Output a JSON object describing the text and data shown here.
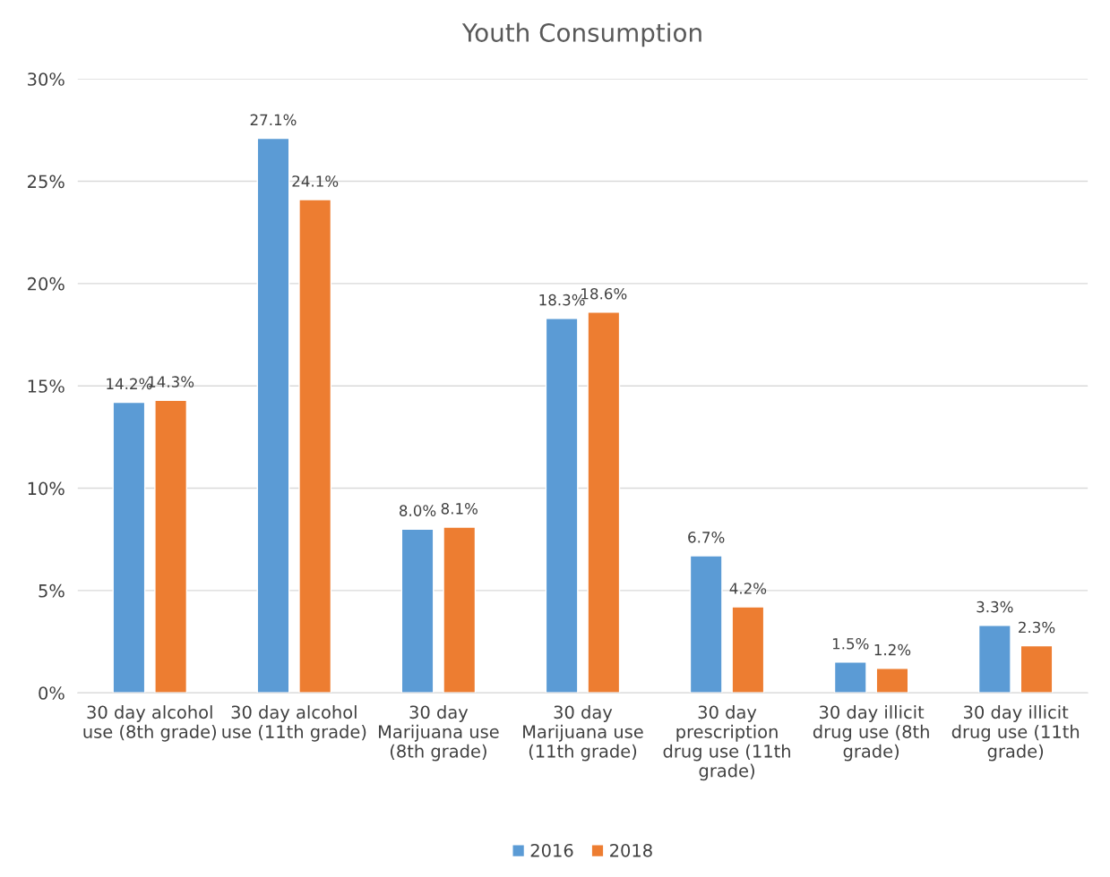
{
  "chart_data": {
    "type": "bar",
    "title": "Youth Consumption",
    "categories": [
      "30 day alcohol\nuse (8th grade)",
      "30 day alcohol\nuse (11th grade)",
      "30 day\nMarijuana use\n(8th grade)",
      "30 day\nMarijuana use\n(11th grade)",
      "30 day\nprescription\ndrug use (11th\ngrade)",
      "30 day illicit\ndrug use (8th\ngrade)",
      "30 day illicit\ndrug use (11th\ngrade)"
    ],
    "series": [
      {
        "name": "2016",
        "color": "#5b9bd5",
        "values": [
          14.2,
          27.1,
          8.0,
          18.3,
          6.7,
          1.5,
          3.3
        ],
        "value_labels": [
          "14.2%",
          "27.1%",
          "8.0%",
          "18.3%",
          "6.7%",
          "1.5%",
          "3.3%"
        ]
      },
      {
        "name": "2018",
        "color": "#ed7d31",
        "values": [
          14.3,
          24.1,
          8.1,
          18.6,
          4.2,
          1.2,
          2.3
        ],
        "value_labels": [
          "14.3%",
          "24.1%",
          "8.1%",
          "18.6%",
          "4.2%",
          "1.2%",
          "2.3%"
        ]
      }
    ],
    "ylim": [
      0,
      30
    ],
    "yticks": [
      {
        "value": 0,
        "label": "0%"
      },
      {
        "value": 5,
        "label": "5%"
      },
      {
        "value": 10,
        "label": "10%"
      },
      {
        "value": 15,
        "label": "15%"
      },
      {
        "value": 20,
        "label": "20%"
      },
      {
        "value": 25,
        "label": "25%"
      },
      {
        "value": 30,
        "label": "30%"
      }
    ],
    "grid": "y",
    "legend": "bottom"
  }
}
